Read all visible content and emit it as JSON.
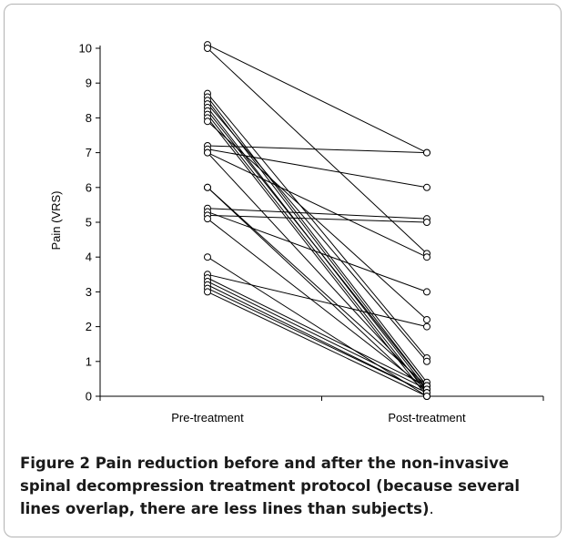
{
  "caption": {
    "label": "Figure 2",
    "text": "Pain reduction before and after the non-invasive spinal decompression treatment protocol (because several lines overlap, there are less lines than subjects)",
    "end": "."
  },
  "chart_data": {
    "type": "line",
    "ylabel": "Pain (VRS)",
    "xlabel": "",
    "categories": [
      "Pre-treatment",
      "Post-treatment"
    ],
    "ylim": [
      0,
      10
    ],
    "yticks": [
      0,
      1,
      2,
      3,
      4,
      5,
      6,
      7,
      8,
      9,
      10
    ],
    "grid": false,
    "marker": "open-circle",
    "series": [
      {
        "values": [
          10.1,
          7.0
        ]
      },
      {
        "values": [
          10.0,
          4.1
        ]
      },
      {
        "values": [
          8.7,
          1.1
        ]
      },
      {
        "values": [
          8.6,
          0.4
        ]
      },
      {
        "values": [
          8.5,
          0.3
        ]
      },
      {
        "values": [
          8.4,
          1.0
        ]
      },
      {
        "values": [
          8.3,
          0.2
        ]
      },
      {
        "values": [
          8.2,
          0.3
        ]
      },
      {
        "values": [
          8.1,
          0.1
        ]
      },
      {
        "values": [
          8.0,
          0.0
        ]
      },
      {
        "values": [
          7.9,
          2.2
        ]
      },
      {
        "values": [
          7.2,
          7.0
        ]
      },
      {
        "values": [
          7.1,
          6.0
        ]
      },
      {
        "values": [
          7.0,
          4.0
        ]
      },
      {
        "values": [
          7.0,
          0.2
        ]
      },
      {
        "values": [
          6.0,
          0.3
        ]
      },
      {
        "values": [
          6.0,
          0.1
        ]
      },
      {
        "values": [
          5.4,
          5.1
        ]
      },
      {
        "values": [
          5.3,
          3.0
        ]
      },
      {
        "values": [
          5.2,
          5.0
        ]
      },
      {
        "values": [
          5.1,
          0.2
        ]
      },
      {
        "values": [
          4.0,
          0.0
        ]
      },
      {
        "values": [
          3.5,
          2.0
        ]
      },
      {
        "values": [
          3.4,
          0.3
        ]
      },
      {
        "values": [
          3.3,
          0.2
        ]
      },
      {
        "values": [
          3.2,
          0.1
        ]
      },
      {
        "values": [
          3.1,
          0.1
        ]
      },
      {
        "values": [
          3.0,
          0.0
        ]
      }
    ]
  }
}
